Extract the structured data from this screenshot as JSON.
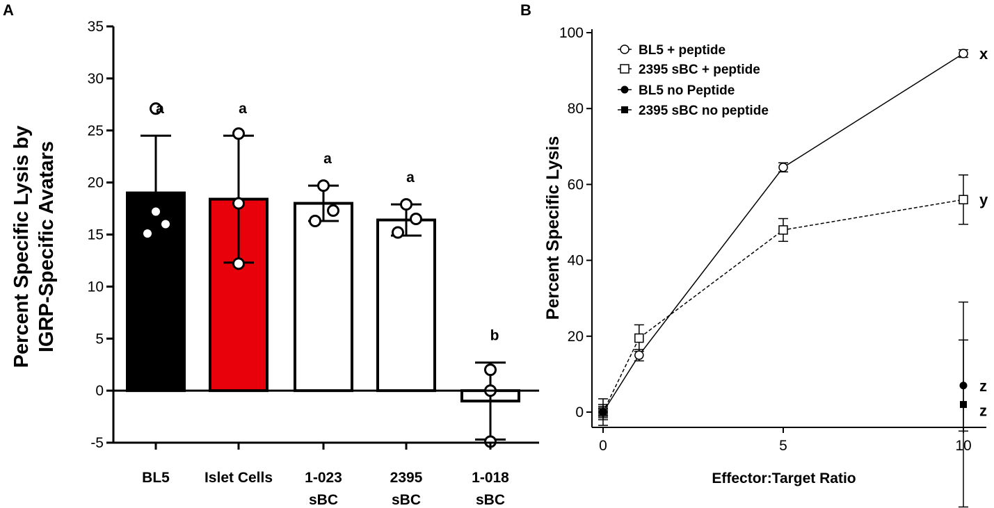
{
  "chart_data": [
    {
      "panel": "A",
      "type": "bar",
      "ylabel_line1": "Percent Specific Lysis by",
      "ylabel_line2": "IGRP-Specific Avatars",
      "ylim": [
        -5,
        35
      ],
      "yticks": [
        -5,
        0,
        5,
        10,
        15,
        20,
        25,
        30,
        35
      ],
      "categories": [
        {
          "label": [
            "BL5"
          ],
          "value": 19.0,
          "error": 5.5,
          "points": [
            27.1,
            17.2,
            16.0,
            15.1
          ],
          "fill": "#000000",
          "letter": "a"
        },
        {
          "label": [
            "Islet Cells"
          ],
          "value": 18.4,
          "error": 6.1,
          "points": [
            24.7,
            18.0,
            12.2
          ],
          "fill": "#e8000b",
          "letter": "a"
        },
        {
          "label": [
            "1-023",
            "sBC"
          ],
          "value": 18.0,
          "error": 1.7,
          "points": [
            19.7,
            17.3,
            16.3
          ],
          "fill": "#ffffff",
          "letter": "a"
        },
        {
          "label": [
            "2395",
            "sBC"
          ],
          "value": 16.4,
          "error": 1.5,
          "points": [
            17.9,
            16.5,
            15.2
          ],
          "fill": "#ffffff",
          "letter": "a"
        },
        {
          "label": [
            "1-018",
            "sBC"
          ],
          "value": -1.0,
          "error": 3.7,
          "points": [
            2.0,
            0.0,
            -4.9
          ],
          "fill": "#ffffff",
          "letter": "b"
        }
      ]
    },
    {
      "panel": "B",
      "type": "line",
      "xlabel": "Effector:Target Ratio",
      "ylabel": "Percent Specific Lysis",
      "xlim": [
        0,
        10
      ],
      "ylim": [
        -5,
        100
      ],
      "xticks": [
        0,
        5,
        10
      ],
      "yticks": [
        0,
        20,
        40,
        60,
        80,
        100
      ],
      "series": [
        {
          "name": "BL5 + peptide",
          "marker": "open-circle",
          "line": "solid",
          "x": [
            0,
            1,
            5,
            10
          ],
          "y": [
            0,
            15,
            64.5,
            94.5
          ],
          "err": [
            1.5,
            1.5,
            1.2,
            1.0
          ]
        },
        {
          "name": "2395 sBC + peptide",
          "marker": "open-square",
          "line": "dashed",
          "x": [
            0,
            1,
            5,
            10
          ],
          "y": [
            0,
            19.5,
            48,
            56
          ],
          "err": [
            1.0,
            3.5,
            3.0,
            6.5
          ]
        },
        {
          "name": "BL5 no Peptide",
          "marker": "filled-circle",
          "line": "none",
          "x": [
            0,
            10
          ],
          "y": [
            0,
            7
          ],
          "err": [
            3.5,
            12
          ]
        },
        {
          "name": "2395 sBC no peptide",
          "marker": "filled-square",
          "line": "none",
          "x": [
            0,
            10
          ],
          "y": [
            0,
            2
          ],
          "err": [
            2.0,
            27
          ]
        }
      ],
      "group_letters": [
        {
          "text": "x",
          "y": 94.5
        },
        {
          "text": "y",
          "y": 56
        },
        {
          "text": "z",
          "y": 7
        },
        {
          "text": "z",
          "y": 0.5
        }
      ]
    }
  ]
}
